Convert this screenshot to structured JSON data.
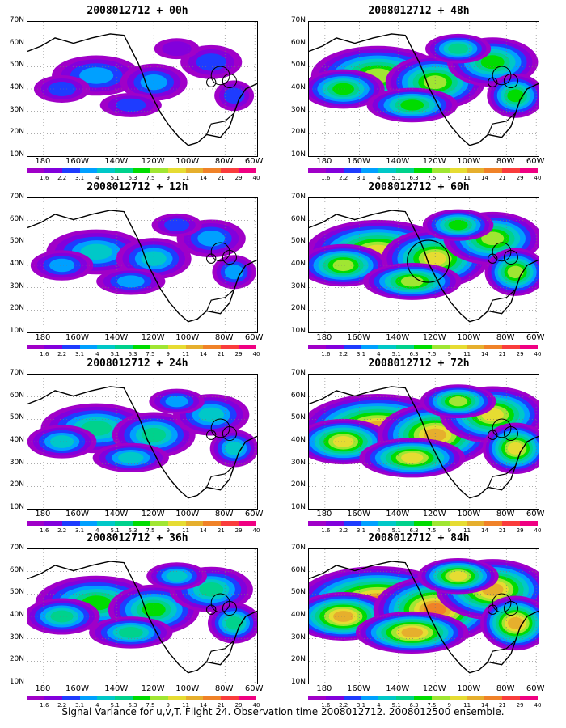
{
  "caption": "Signal Variance for u,v,T. Flight 24. Observation time 2008012712. 2008012500 ensemble.",
  "panels": [
    {
      "title": "2008012712 + 00h",
      "intensity": 0
    },
    {
      "title": "2008012712 + 48h",
      "intensity": 4
    },
    {
      "title": "2008012712 + 12h",
      "intensity": 1
    },
    {
      "title": "2008012712 + 60h",
      "intensity": 5
    },
    {
      "title": "2008012712 + 24h",
      "intensity": 2
    },
    {
      "title": "2008012712 + 72h",
      "intensity": 6
    },
    {
      "title": "2008012712 + 36h",
      "intensity": 3
    },
    {
      "title": "2008012712 + 84h",
      "intensity": 7
    }
  ],
  "lat_labels": [
    "70N",
    "60N",
    "50N",
    "40N",
    "30N",
    "20N",
    "10N"
  ],
  "lon_labels": [
    "180",
    "160W",
    "140W",
    "120W",
    "100W",
    "80W",
    "60W"
  ],
  "colorbar": {
    "labels": [
      "1.6",
      "2.2",
      "3.1",
      "4",
      "5.1",
      "6.3",
      "7.5",
      "9",
      "11",
      "14",
      "21",
      "29",
      "40"
    ],
    "colors": [
      "#a000c8",
      "#8200dc",
      "#1e3cff",
      "#00a0ff",
      "#00c8c8",
      "#00d28c",
      "#00dc00",
      "#a0e632",
      "#e6dc32",
      "#e6af2d",
      "#f08228",
      "#fa3c3c",
      "#f00082"
    ]
  }
}
